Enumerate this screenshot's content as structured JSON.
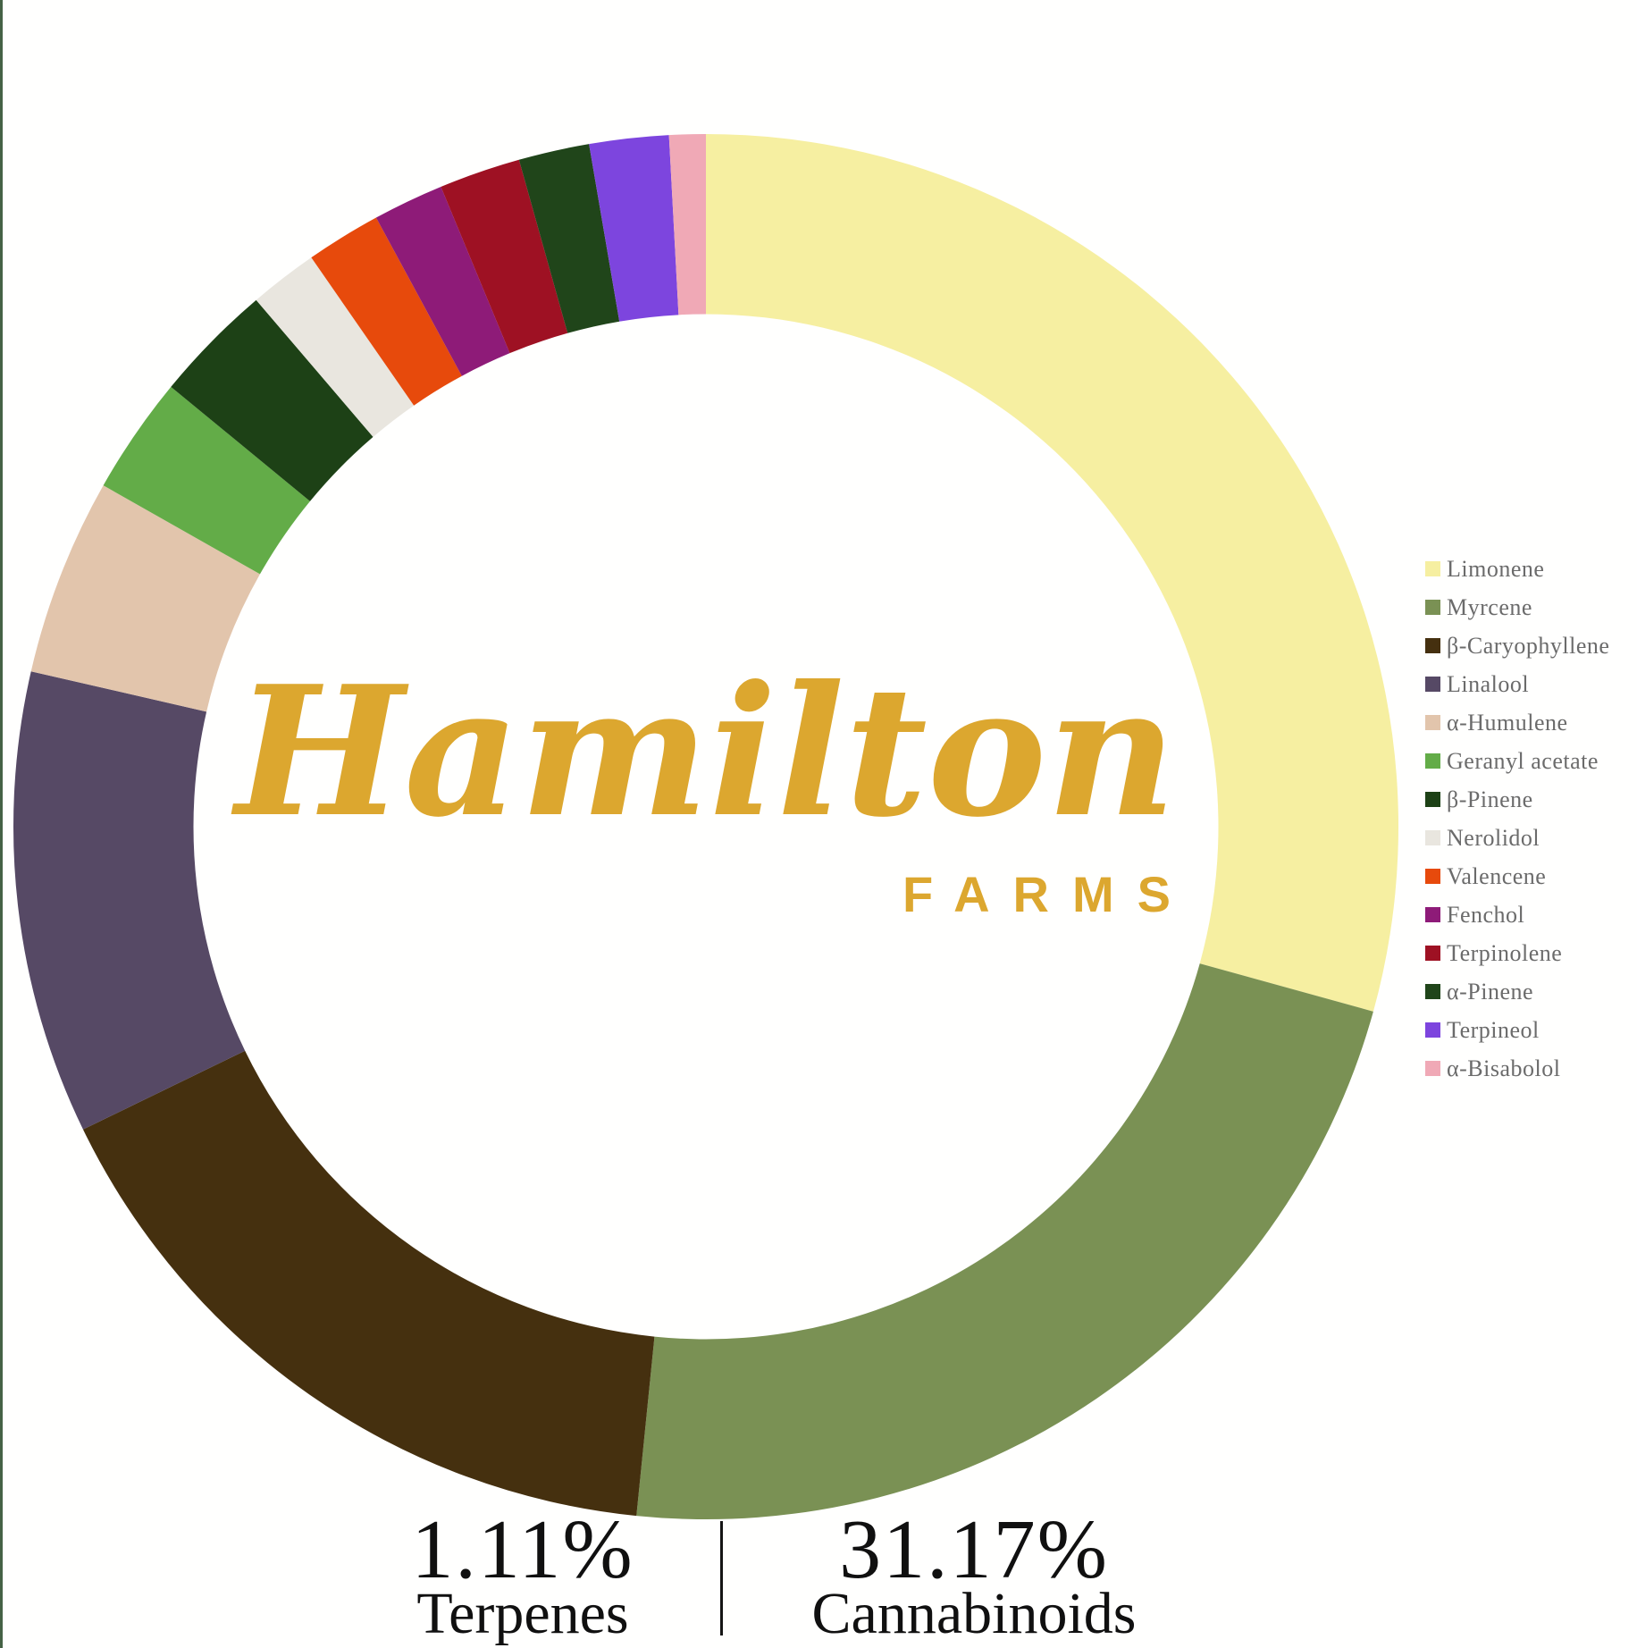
{
  "page": {
    "background": "#FFFFFE",
    "edge_bar_color": "#456245"
  },
  "logo": {
    "script": "Hamilton",
    "caps": "FARMS",
    "color": "#DCA72F"
  },
  "chart_data": {
    "type": "pie",
    "subtype": "donut",
    "direction": "clockwise",
    "start_angle_deg": 0,
    "inner_radius_ratio": 0.74,
    "legend_position": "right",
    "total_terpenes_pct": 1.11,
    "segments": [
      {
        "label": "Limonene",
        "color": "#F6EFA1",
        "share_pct": 29.3
      },
      {
        "label": "Myrcene",
        "color": "#7A9154",
        "share_pct": 22.3
      },
      {
        "label": "β-Caryophyllene",
        "color": "#45300F",
        "share_pct": 16.2
      },
      {
        "label": "Linalool",
        "color": "#564965",
        "share_pct": 10.8
      },
      {
        "label": "α-Humulene",
        "color": "#E2C5AC",
        "share_pct": 4.6
      },
      {
        "label": "Geranyl acetate",
        "color": "#63AC48",
        "share_pct": 2.75
      },
      {
        "label": "β-Pinene",
        "color": "#1D4116",
        "share_pct": 2.8
      },
      {
        "label": "Nerolidol",
        "color": "#E9E6DF",
        "share_pct": 1.6
      },
      {
        "label": "Valencene",
        "color": "#E74A0C",
        "share_pct": 1.75
      },
      {
        "label": "Fenchol",
        "color": "#8E1B78",
        "share_pct": 1.65
      },
      {
        "label": "Terpinolene",
        "color": "#9E1123",
        "share_pct": 1.9
      },
      {
        "label": "α-Pinene",
        "color": "#20451A",
        "share_pct": 1.65
      },
      {
        "label": "Terpineol",
        "color": "#7D45DE",
        "share_pct": 1.85
      },
      {
        "label": "α-Bisabolol",
        "color": "#F0A9B6",
        "share_pct": 0.85
      }
    ]
  },
  "footer": {
    "left": {
      "value": "1.11%",
      "label": "Terpenes"
    },
    "right": {
      "value": "31.17%",
      "label": "Cannabinoids"
    }
  }
}
